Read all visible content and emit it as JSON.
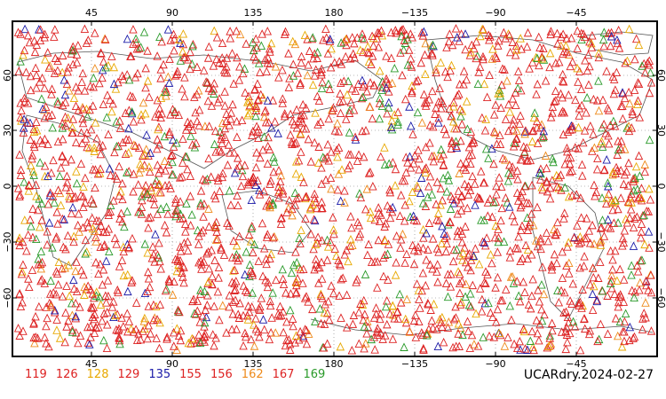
{
  "map": {
    "x_ticks": [
      "45",
      "90",
      "135",
      "180",
      "−135",
      "−90",
      "−45"
    ],
    "y_ticks": [
      "60",
      "30",
      "0",
      "−30",
      "−60"
    ],
    "legend": [
      {
        "label": "119",
        "color": "#dd2222"
      },
      {
        "label": "126",
        "color": "#dd2222"
      },
      {
        "label": "128",
        "color": "#e8a800"
      },
      {
        "label": "129",
        "color": "#dd2222"
      },
      {
        "label": "135",
        "color": "#1a1aa8"
      },
      {
        "label": "155",
        "color": "#dd2222"
      },
      {
        "label": "156",
        "color": "#dd2222"
      },
      {
        "label": "162",
        "color": "#ee8a1a"
      },
      {
        "label": "167",
        "color": "#dd2222"
      },
      {
        "label": "169",
        "color": "#2a9a2a"
      }
    ],
    "title": "UCARdry.2024-02-27"
  }
}
